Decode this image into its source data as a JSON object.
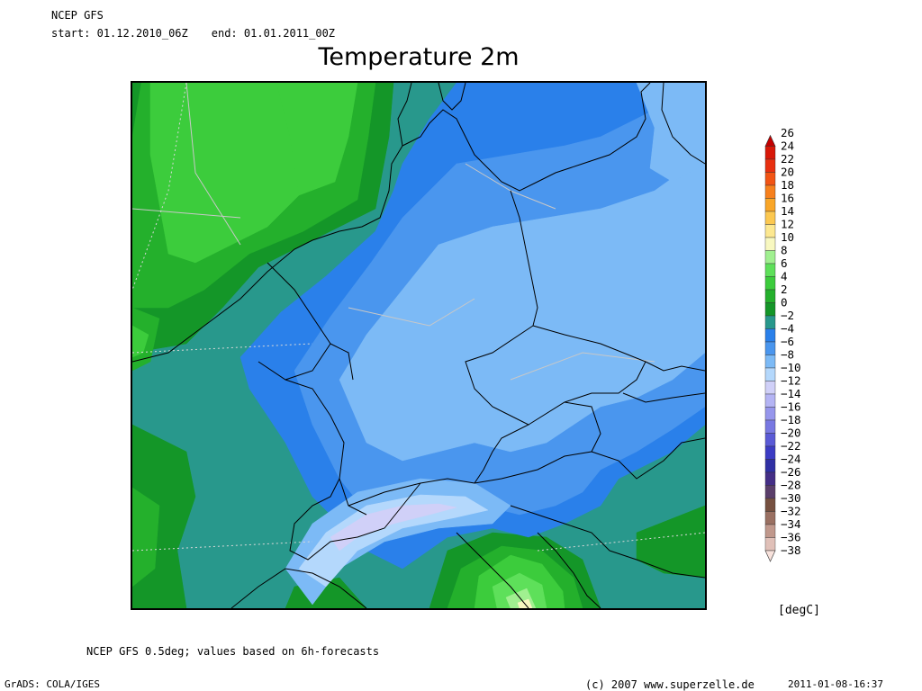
{
  "header": {
    "source": "NCEP GFS",
    "start_label": "start:",
    "start_value": "01.12.2010_06Z",
    "end_label": "end:",
    "end_value": "01.01.2011_00Z",
    "title": "Temperature 2m"
  },
  "legend": {
    "units": "[degC]",
    "levels": [
      {
        "label": "26",
        "color": "#c40000"
      },
      {
        "label": "24",
        "color": "#d81808"
      },
      {
        "label": "22",
        "color": "#e83010"
      },
      {
        "label": "20",
        "color": "#f25414"
      },
      {
        "label": "18",
        "color": "#f7801c"
      },
      {
        "label": "16",
        "color": "#f9a628"
      },
      {
        "label": "14",
        "color": "#fcc850"
      },
      {
        "label": "12",
        "color": "#fde890"
      },
      {
        "label": "10",
        "color": "#f8f8c0"
      },
      {
        "label": "8",
        "color": "#a0f090"
      },
      {
        "label": "6",
        "color": "#5ee05a"
      },
      {
        "label": "4",
        "color": "#3ccc3c"
      },
      {
        "label": "2",
        "color": "#24b02c"
      },
      {
        "label": "0",
        "color": "#149628"
      },
      {
        "label": "−2",
        "color": "#28988c"
      },
      {
        "label": "−4",
        "color": "#2a80ea"
      },
      {
        "label": "−6",
        "color": "#4a96ee"
      },
      {
        "label": "−8",
        "color": "#7cbaf6"
      },
      {
        "label": "−10",
        "color": "#b4d8fc"
      },
      {
        "label": "−12",
        "color": "#d0d0f8"
      },
      {
        "label": "−14",
        "color": "#b4b4f4"
      },
      {
        "label": "−16",
        "color": "#9696ec"
      },
      {
        "label": "−18",
        "color": "#7878e2"
      },
      {
        "label": "−20",
        "color": "#5a5ad6"
      },
      {
        "label": "−22",
        "color": "#3c3cc4"
      },
      {
        "label": "−24",
        "color": "#3030a4"
      },
      {
        "label": "−26",
        "color": "#442e86"
      },
      {
        "label": "−28",
        "color": "#5a3e6a"
      },
      {
        "label": "−30",
        "color": "#765040"
      },
      {
        "label": "−32",
        "color": "#9a7062"
      },
      {
        "label": "−34",
        "color": "#c0988c"
      },
      {
        "label": "−36",
        "color": "#e0c0b8"
      },
      {
        "label": "−38",
        "color": "#f8e2dc"
      }
    ]
  },
  "footer": {
    "model_note": "NCEP GFS 0.5deg; values based on 6h-forecasts",
    "software": "GrADS: COLA/IGES",
    "credit": "(c) 2007 www.superzelle.de",
    "timestamp": "2011-01-08-16:37"
  },
  "map_colors": {
    "deg_4": "#3ccc3c",
    "deg_2": "#24b02c",
    "deg_0": "#149628",
    "deg_m2": "#28988c",
    "deg_m4": "#2a80ea",
    "deg_m6": "#4a96ee",
    "deg_m8": "#7cbaf6",
    "deg_m10": "#b4d8fc",
    "deg_m12": "#d0d0f8",
    "deg_6": "#5ee05a",
    "deg_8": "#a0f090",
    "deg_10": "#f8f8c0"
  }
}
